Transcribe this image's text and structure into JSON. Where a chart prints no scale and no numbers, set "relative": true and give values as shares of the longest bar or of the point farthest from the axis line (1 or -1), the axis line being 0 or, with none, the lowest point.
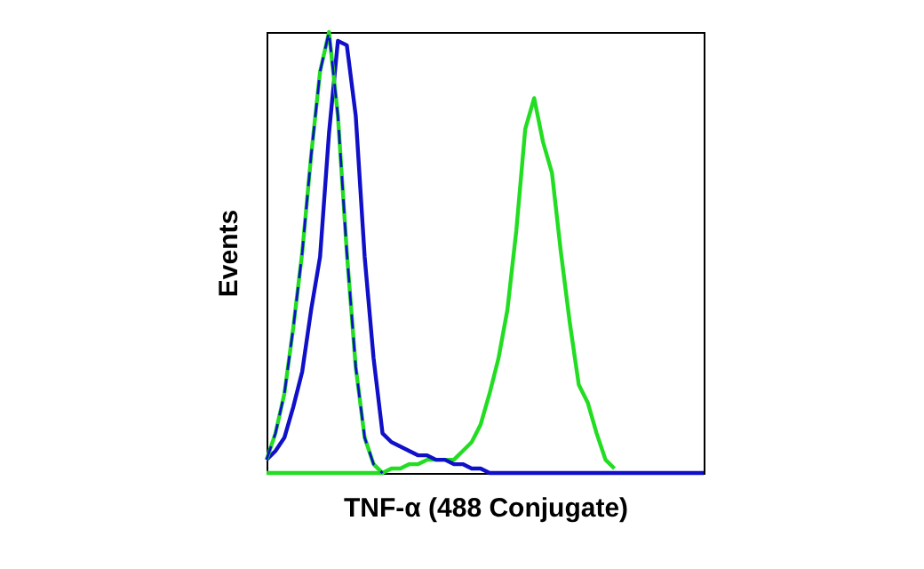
{
  "chart_data": {
    "type": "line",
    "xlabel": "TNF-α (488 Conjugate)",
    "ylabel": "Events",
    "relative": true,
    "categories": [
      null,
      null,
      null,
      null,
      null,
      null,
      null,
      null,
      null,
      null,
      null,
      null,
      null,
      null,
      null,
      null,
      null,
      null,
      null,
      null,
      null,
      null,
      null,
      null,
      null,
      null,
      null,
      null,
      null,
      null,
      null,
      null,
      null,
      null,
      null,
      null,
      null,
      null,
      null,
      null,
      null,
      null,
      null,
      null,
      null,
      null,
      null,
      null,
      null,
      null
    ],
    "series": [
      {
        "color": "#22dd22",
        "line_style": "solid",
        "values": [
          0,
          0,
          0,
          0,
          0,
          0,
          0,
          0,
          0,
          0,
          0,
          0,
          0,
          0,
          0.01,
          0.01,
          0.02,
          0.02,
          0.03,
          0.03,
          0.03,
          0.03,
          0.05,
          0.07,
          0.11,
          0.18,
          0.26,
          0.37,
          0.55,
          0.78,
          0.85,
          0.75,
          0.68,
          0.5,
          0.34,
          0.2,
          0.16,
          0.09,
          0.03,
          0.01,
          null,
          null,
          null,
          null,
          null,
          null,
          null,
          null,
          null,
          null
        ]
      },
      {
        "color": "#1010c8",
        "line_style": "solid",
        "values": [
          0.03,
          0.05,
          0.08,
          0.15,
          0.23,
          0.37,
          0.49,
          0.77,
          0.98,
          0.97,
          0.81,
          0.49,
          0.26,
          0.09,
          0.07,
          0.06,
          0.05,
          0.04,
          0.04,
          0.03,
          0.03,
          0.02,
          0.02,
          0.01,
          0.01,
          0,
          0,
          0,
          0,
          0,
          0,
          0,
          0,
          0,
          0,
          0,
          0,
          0,
          0,
          0,
          0,
          0,
          0,
          0,
          0,
          0,
          0,
          0,
          0,
          0
        ]
      },
      {
        "color": "#22dd22",
        "line_style": "solid",
        "values": [
          0.03,
          0.09,
          0.18,
          0.33,
          0.5,
          0.72,
          0.91,
          1,
          0.81,
          0.5,
          0.24,
          0.08,
          0.02,
          0,
          null,
          null,
          null,
          null,
          null,
          null,
          null,
          null,
          null,
          null,
          null,
          null,
          null,
          null,
          null,
          null,
          null,
          null,
          null,
          null,
          null,
          null,
          null,
          null,
          null,
          null,
          null,
          null,
          null,
          null,
          null,
          null,
          null,
          null,
          null,
          null
        ]
      },
      {
        "color": "#1010c8",
        "line_style": "dashed",
        "values": [
          0.03,
          0.09,
          0.18,
          0.33,
          0.5,
          0.72,
          0.91,
          1,
          0.81,
          0.5,
          0.24,
          0.08,
          0.02,
          0,
          null,
          null,
          null,
          null,
          null,
          null,
          null,
          null,
          null,
          null,
          null,
          null,
          null,
          null,
          null,
          null,
          null,
          null,
          null,
          null,
          null,
          null,
          null,
          null,
          null,
          null,
          null,
          null,
          null,
          null,
          null,
          null,
          null,
          null,
          null,
          null
        ]
      }
    ]
  }
}
